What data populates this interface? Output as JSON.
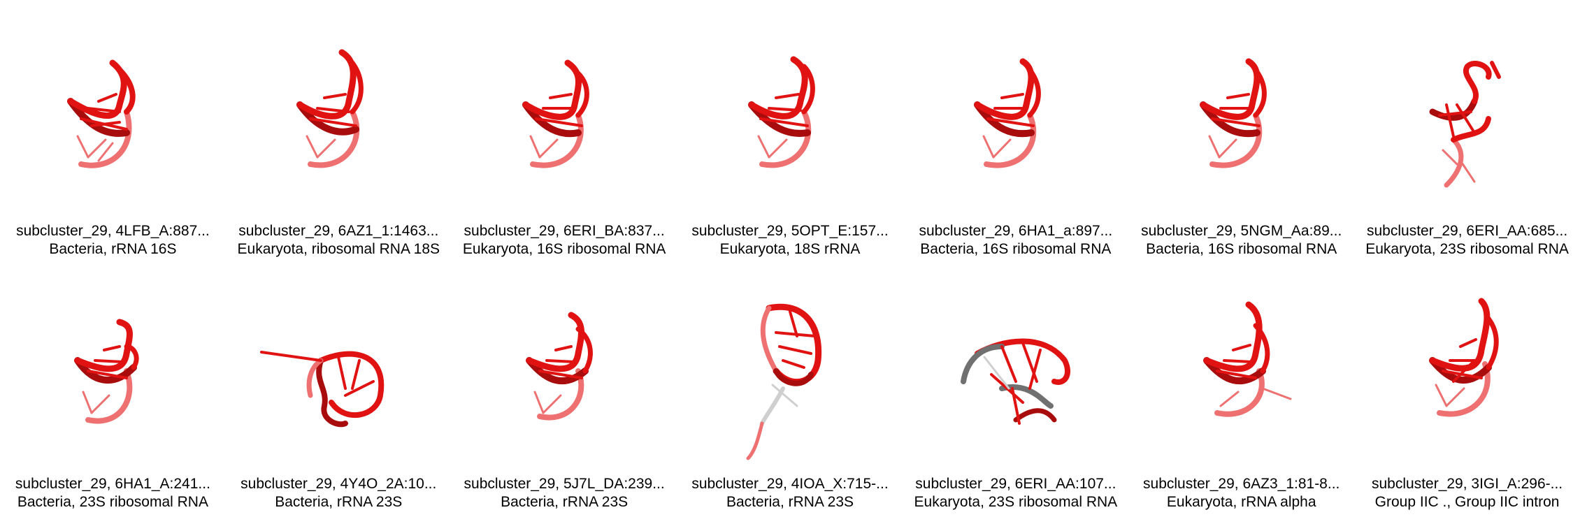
{
  "colors": {
    "red": "#e01212",
    "dark_red": "#a80c0c",
    "pink": "#ee7070",
    "grey": "#707070",
    "light_grey": "#cfcfcf"
  },
  "tiles": [
    {
      "id": "subcluster_29, 4LFB_A:887...",
      "desc": "Bacteria, rRNA 16S",
      "icon": "rna-structure-icon"
    },
    {
      "id": "subcluster_29, 6AZ1_1:1463...",
      "desc": "Eukaryota, ribosomal RNA 18S",
      "icon": "rna-structure-icon"
    },
    {
      "id": "subcluster_29, 6ERI_BA:837...",
      "desc": "Eukaryota, 16S ribosomal RNA",
      "icon": "rna-structure-icon"
    },
    {
      "id": "subcluster_29, 5OPT_E:157...",
      "desc": "Eukaryota, 18S rRNA",
      "icon": "rna-structure-icon"
    },
    {
      "id": "subcluster_29, 6HA1_a:897...",
      "desc": "Bacteria, 16S ribosomal RNA",
      "icon": "rna-structure-icon"
    },
    {
      "id": "subcluster_29, 5NGM_Aa:89...",
      "desc": "Bacteria, 16S ribosomal RNA",
      "icon": "rna-structure-icon"
    },
    {
      "id": "subcluster_29, 6ERI_AA:685...",
      "desc": "Eukaryota, 23S ribosomal RNA",
      "icon": "rna-structure-icon"
    },
    {
      "id": "subcluster_29, 6HA1_A:241...",
      "desc": "Bacteria, 23S ribosomal RNA",
      "icon": "rna-structure-icon"
    },
    {
      "id": "subcluster_29, 4Y4O_2A:10...",
      "desc": "Bacteria, rRNA 23S",
      "icon": "rna-structure-icon"
    },
    {
      "id": "subcluster_29, 5J7L_DA:239...",
      "desc": "Bacteria, rRNA 23S",
      "icon": "rna-structure-icon"
    },
    {
      "id": "subcluster_29, 4IOA_X:715-...",
      "desc": "Bacteria, rRNA 23S",
      "icon": "rna-structure-icon"
    },
    {
      "id": "subcluster_29, 6ERI_AA:107...",
      "desc": "Eukaryota, 23S ribosomal RNA",
      "icon": "rna-structure-icon"
    },
    {
      "id": "subcluster_29, 6AZ3_1:81-8...",
      "desc": "Eukaryota, rRNA alpha",
      "icon": "rna-structure-icon"
    },
    {
      "id": "subcluster_29, 3IGI_A:296-...",
      "desc": "Group IIC ., Group IIC intron",
      "icon": "rna-structure-icon"
    }
  ]
}
